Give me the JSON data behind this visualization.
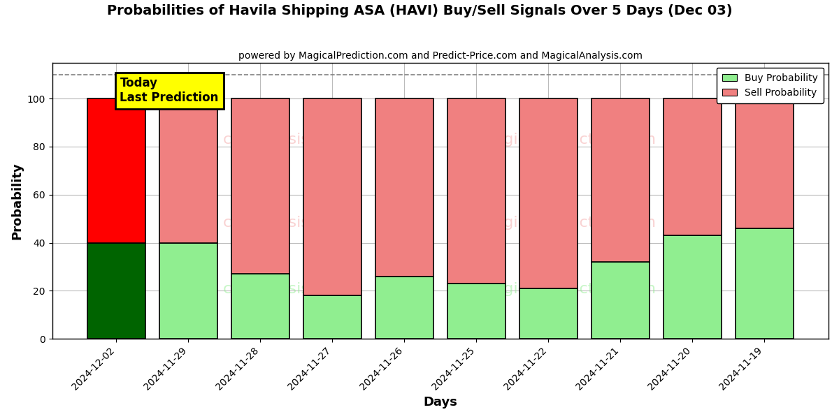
{
  "title": "Probabilities of Havila Shipping ASA (HAVI) Buy/Sell Signals Over 5 Days (Dec 03)",
  "subtitle": "powered by MagicalPrediction.com and Predict-Price.com and MagicalAnalysis.com",
  "xlabel": "Days",
  "ylabel": "Probability",
  "categories": [
    "2024-12-02",
    "2024-11-29",
    "2024-11-28",
    "2024-11-27",
    "2024-11-26",
    "2024-11-25",
    "2024-11-22",
    "2024-11-21",
    "2024-11-20",
    "2024-11-19"
  ],
  "buy_values": [
    40,
    40,
    27,
    18,
    26,
    23,
    21,
    32,
    43,
    46
  ],
  "sell_values": [
    60,
    60,
    73,
    82,
    74,
    77,
    79,
    68,
    57,
    54
  ],
  "buy_colors": [
    "#006400",
    "#90EE90",
    "#90EE90",
    "#90EE90",
    "#90EE90",
    "#90EE90",
    "#90EE90",
    "#90EE90",
    "#90EE90",
    "#90EE90"
  ],
  "sell_colors": [
    "#FF0000",
    "#F08080",
    "#F08080",
    "#F08080",
    "#F08080",
    "#F08080",
    "#F08080",
    "#F08080",
    "#F08080",
    "#F08080"
  ],
  "today_label": "Today\nLast Prediction",
  "today_label_bg": "#FFFF00",
  "legend_buy_color": "#90EE90",
  "legend_sell_color": "#F08080",
  "dashed_line_y": 110,
  "ylim": [
    0,
    115
  ],
  "yticks": [
    0,
    20,
    40,
    60,
    80,
    100
  ],
  "bar_edgecolor": "#000000",
  "bar_linewidth": 1.2,
  "background_color": "#ffffff",
  "grid_color": "#bbbbbb"
}
